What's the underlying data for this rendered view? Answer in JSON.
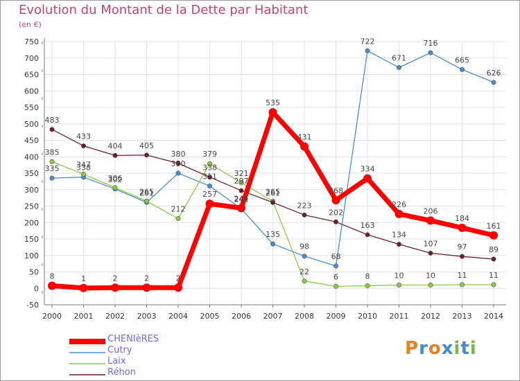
{
  "title": "Evolution du Montant de la Dette par Habitant",
  "subtitle": "(en €)",
  "brand": {
    "text": "Proxiti",
    "colors": [
      "#e8821e",
      "#3e8ed0",
      "#e8821e",
      "#3e8ed0",
      "#7ab648",
      "#3e8ed0",
      "#7ab648"
    ]
  },
  "chart_data": {
    "type": "line",
    "title": "Evolution du Montant de la Dette par Habitant",
    "ylabel": "(en €)",
    "xlabel": "",
    "ylim": [
      -50,
      750
    ],
    "yticks": [
      -50,
      0,
      50,
      100,
      150,
      200,
      250,
      300,
      350,
      400,
      450,
      500,
      550,
      600,
      650,
      700,
      750
    ],
    "grid": true,
    "legend_position": "bottom-left",
    "x": [
      "2000",
      "2001",
      "2002",
      "2003",
      "2004",
      "2005",
      "2006",
      "2007",
      "2008",
      "2009",
      "2010",
      "2011",
      "2012",
      "2013",
      "2014"
    ],
    "series": [
      {
        "name": "Cutry",
        "color": "#4a8ec8",
        "values": [
          335,
          338,
          302,
          261,
          350,
          311,
          242,
          135,
          98,
          68,
          722,
          671,
          716,
          665,
          626
        ],
        "labels": [
          "335",
          "338",
          "302",
          "261",
          "350",
          "311",
          "242",
          "135",
          "98",
          "68",
          "722",
          "671",
          "716",
          "665",
          "626"
        ]
      },
      {
        "name": "Laix",
        "color": "#88cc44",
        "values": [
          385,
          347,
          306,
          265,
          212,
          379,
          321,
          265,
          22,
          6,
          8,
          10,
          10,
          11,
          11
        ],
        "labels": [
          "385",
          "347",
          "306",
          "265",
          "212",
          "379",
          "321",
          "265",
          "22",
          "6",
          "8",
          "10",
          "10",
          "11",
          "11"
        ]
      },
      {
        "name": "Réhon",
        "color": "#6a1f2a",
        "values": [
          483,
          433,
          404,
          405,
          380,
          338,
          297,
          261,
          223,
          202,
          163,
          134,
          107,
          97,
          89
        ],
        "labels": [
          "483",
          "433",
          "404",
          "405",
          "380",
          "338",
          "297",
          "261",
          "223",
          "202",
          "163",
          "134",
          "107",
          "97",
          "89"
        ]
      },
      {
        "name": "CHENIèRES",
        "color": "#ff0000",
        "values": [
          8,
          1,
          2,
          2,
          2,
          257,
          244,
          535,
          431,
          268,
          334,
          226,
          206,
          184,
          161
        ],
        "labels": [
          "8",
          "1",
          "2",
          "2",
          "2",
          "257",
          "244",
          "535",
          "431",
          "268",
          "334",
          "226",
          "206",
          "184",
          "161"
        ]
      }
    ]
  },
  "legend": [
    {
      "name": "CHENIèRES",
      "color": "#ff0000",
      "thick": true
    },
    {
      "name": "Cutry",
      "color": "#4a8ec8",
      "thick": false
    },
    {
      "name": "Laix",
      "color": "#88cc44",
      "thick": false
    },
    {
      "name": "Réhon",
      "color": "#6a1f2a",
      "thick": false
    }
  ]
}
